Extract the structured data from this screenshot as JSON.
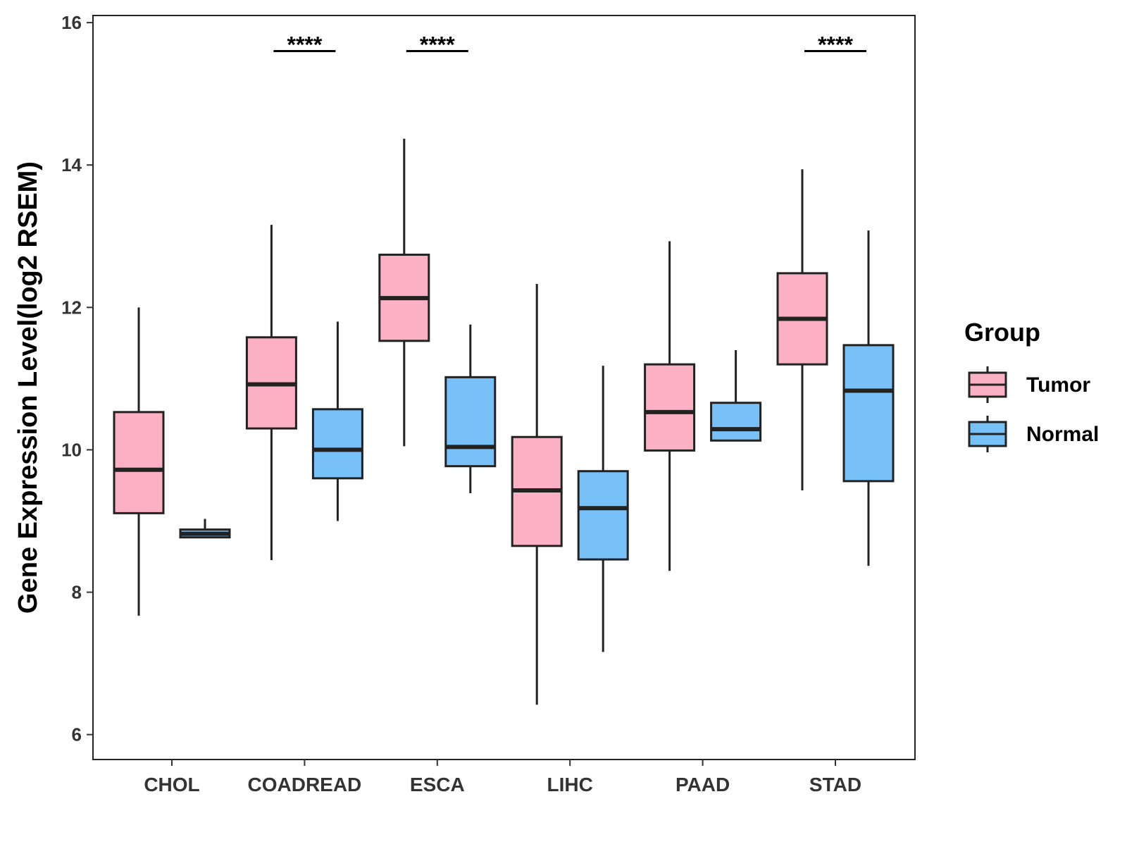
{
  "chart_data": {
    "type": "box",
    "ylabel": "Gene Expression Level(log2 RSEM)",
    "xlabel": "",
    "ylim": [
      5.65,
      16.1
    ],
    "yticks": [
      6,
      8,
      10,
      12,
      14,
      16
    ],
    "ytick_labels": [
      "6",
      "8",
      "10",
      "12",
      "14",
      "16"
    ],
    "categories": [
      "CHOL",
      "COADREAD",
      "ESCA",
      "LIHC",
      "PAAD",
      "STAD"
    ],
    "legend": {
      "title": "Group",
      "position": "right",
      "entries": [
        {
          "key": "Tumor",
          "label": "Tumor",
          "color": "#FBB1C3"
        },
        {
          "key": "Normal",
          "label": "Normal",
          "color": "#77C1F8"
        }
      ]
    },
    "series": [
      {
        "name": "Tumor",
        "color": "#FBB1C3",
        "boxes": [
          {
            "min": 7.67,
            "q1": 9.11,
            "median": 9.72,
            "q3": 10.53,
            "max": 12.0
          },
          {
            "min": 8.45,
            "q1": 10.3,
            "median": 10.92,
            "q3": 11.58,
            "max": 13.16
          },
          {
            "min": 10.05,
            "q1": 11.53,
            "median": 12.13,
            "q3": 12.74,
            "max": 14.37
          },
          {
            "min": 6.42,
            "q1": 8.65,
            "median": 9.43,
            "q3": 10.18,
            "max": 12.33
          },
          {
            "min": 8.3,
            "q1": 9.99,
            "median": 10.53,
            "q3": 11.2,
            "max": 12.93
          },
          {
            "min": 9.43,
            "q1": 11.2,
            "median": 11.84,
            "q3": 12.48,
            "max": 13.94
          }
        ]
      },
      {
        "name": "Normal",
        "color": "#77C1F8",
        "boxes": [
          {
            "min": 8.77,
            "q1": 8.77,
            "median": 8.82,
            "q3": 8.88,
            "max": 9.03
          },
          {
            "min": 9.0,
            "q1": 9.6,
            "median": 10.0,
            "q3": 10.57,
            "max": 11.8
          },
          {
            "min": 9.39,
            "q1": 9.77,
            "median": 10.04,
            "q3": 11.02,
            "max": 11.76
          },
          {
            "min": 7.16,
            "q1": 8.46,
            "median": 9.18,
            "q3": 9.7,
            "max": 11.18
          },
          {
            "min": 10.13,
            "q1": 10.13,
            "median": 10.29,
            "q3": 10.66,
            "max": 11.4
          },
          {
            "min": 8.37,
            "q1": 9.56,
            "median": 10.83,
            "q3": 11.47,
            "max": 13.08
          }
        ]
      }
    ],
    "significance": [
      {
        "category": "COADREAD",
        "label": "****",
        "y": 15.6
      },
      {
        "category": "ESCA",
        "label": "****",
        "y": 15.6
      },
      {
        "category": "STAD",
        "label": "****",
        "y": 15.6
      }
    ]
  }
}
